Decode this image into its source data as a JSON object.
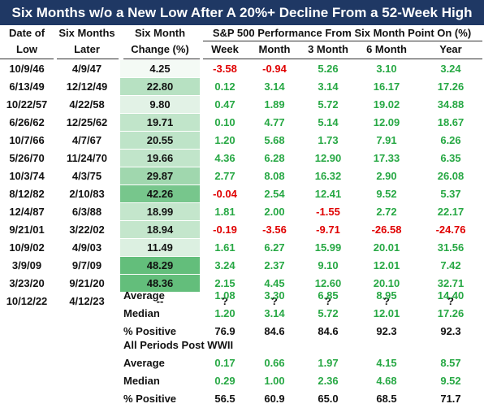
{
  "title": "Six Months w/o a New Low After A 20%+ Decline From a 52-Week High",
  "headers": {
    "date_of_low": [
      "Date of",
      "Low"
    ],
    "six_months_later": [
      "Six Months",
      "Later"
    ],
    "six_month_change": [
      "Six Month",
      "Change (%)"
    ],
    "performance_group": "S&P 500 Performance From Six Month Point On (%)",
    "periods": [
      "Week",
      "Month",
      "3 Month",
      "6 Month",
      "Year"
    ]
  },
  "colors": {
    "positive": "#27a844",
    "negative": "#e00000",
    "banner": "#1f3864",
    "heat_low": "#f4faf5",
    "heat_high": "#63be7b"
  },
  "rows": [
    {
      "date": "10/9/46",
      "later": "4/9/47",
      "change": "4.25",
      "values": [
        "-3.58",
        "-0.94",
        "5.26",
        "3.10",
        "3.24"
      ]
    },
    {
      "date": "6/13/49",
      "later": "12/12/49",
      "change": "22.80",
      "values": [
        "0.12",
        "3.14",
        "3.14",
        "16.17",
        "17.26"
      ]
    },
    {
      "date": "10/22/57",
      "later": "4/22/58",
      "change": "9.80",
      "values": [
        "0.47",
        "1.89",
        "5.72",
        "19.02",
        "34.88"
      ]
    },
    {
      "date": "6/26/62",
      "later": "12/25/62",
      "change": "19.71",
      "values": [
        "0.10",
        "4.77",
        "5.14",
        "12.09",
        "18.67"
      ]
    },
    {
      "date": "10/7/66",
      "later": "4/7/67",
      "change": "20.55",
      "values": [
        "1.20",
        "5.68",
        "1.73",
        "7.91",
        "6.26"
      ]
    },
    {
      "date": "5/26/70",
      "later": "11/24/70",
      "change": "19.66",
      "values": [
        "4.36",
        "6.28",
        "12.90",
        "17.33",
        "6.35"
      ]
    },
    {
      "date": "10/3/74",
      "later": "4/3/75",
      "change": "29.87",
      "values": [
        "2.77",
        "8.08",
        "16.32",
        "2.90",
        "26.08"
      ]
    },
    {
      "date": "8/12/82",
      "later": "2/10/83",
      "change": "42.26",
      "values": [
        "-0.04",
        "2.54",
        "12.41",
        "9.52",
        "5.37"
      ]
    },
    {
      "date": "12/4/87",
      "later": "6/3/88",
      "change": "18.99",
      "values": [
        "1.81",
        "2.00",
        "-1.55",
        "2.72",
        "22.17"
      ]
    },
    {
      "date": "9/21/01",
      "later": "3/22/02",
      "change": "18.94",
      "values": [
        "-0.19",
        "-3.56",
        "-9.71",
        "-26.58",
        "-24.76"
      ]
    },
    {
      "date": "10/9/02",
      "later": "4/9/03",
      "change": "11.49",
      "values": [
        "1.61",
        "6.27",
        "15.99",
        "20.01",
        "31.56"
      ]
    },
    {
      "date": "3/9/09",
      "later": "9/7/09",
      "change": "48.29",
      "values": [
        "3.24",
        "2.37",
        "9.10",
        "12.01",
        "7.42"
      ]
    },
    {
      "date": "3/23/20",
      "later": "9/21/20",
      "change": "48.36",
      "values": [
        "2.15",
        "4.45",
        "12.60",
        "20.10",
        "32.71"
      ]
    },
    {
      "date": "10/12/22",
      "later": "4/12/23",
      "change": "--",
      "values": [
        "?",
        "?",
        "?",
        "?",
        "?"
      ]
    }
  ],
  "summary": [
    {
      "label": "Average",
      "values": [
        "1.08",
        "3.30",
        "6.85",
        "8.95",
        "14.40"
      ]
    },
    {
      "label": "Median",
      "values": [
        "1.20",
        "3.14",
        "5.72",
        "12.01",
        "17.26"
      ]
    },
    {
      "label": "% Positive",
      "values": [
        "76.9",
        "84.6",
        "84.6",
        "92.3",
        "92.3"
      ]
    }
  ],
  "post_wwii_label": "All Periods Post WWII",
  "post_wwii": [
    {
      "label": "Average",
      "values": [
        "0.17",
        "0.66",
        "1.97",
        "4.15",
        "8.57"
      ]
    },
    {
      "label": "Median",
      "values": [
        "0.29",
        "1.00",
        "2.36",
        "4.68",
        "9.52"
      ]
    },
    {
      "label": "% Positive",
      "values": [
        "56.5",
        "60.9",
        "65.0",
        "68.5",
        "71.7"
      ]
    }
  ]
}
